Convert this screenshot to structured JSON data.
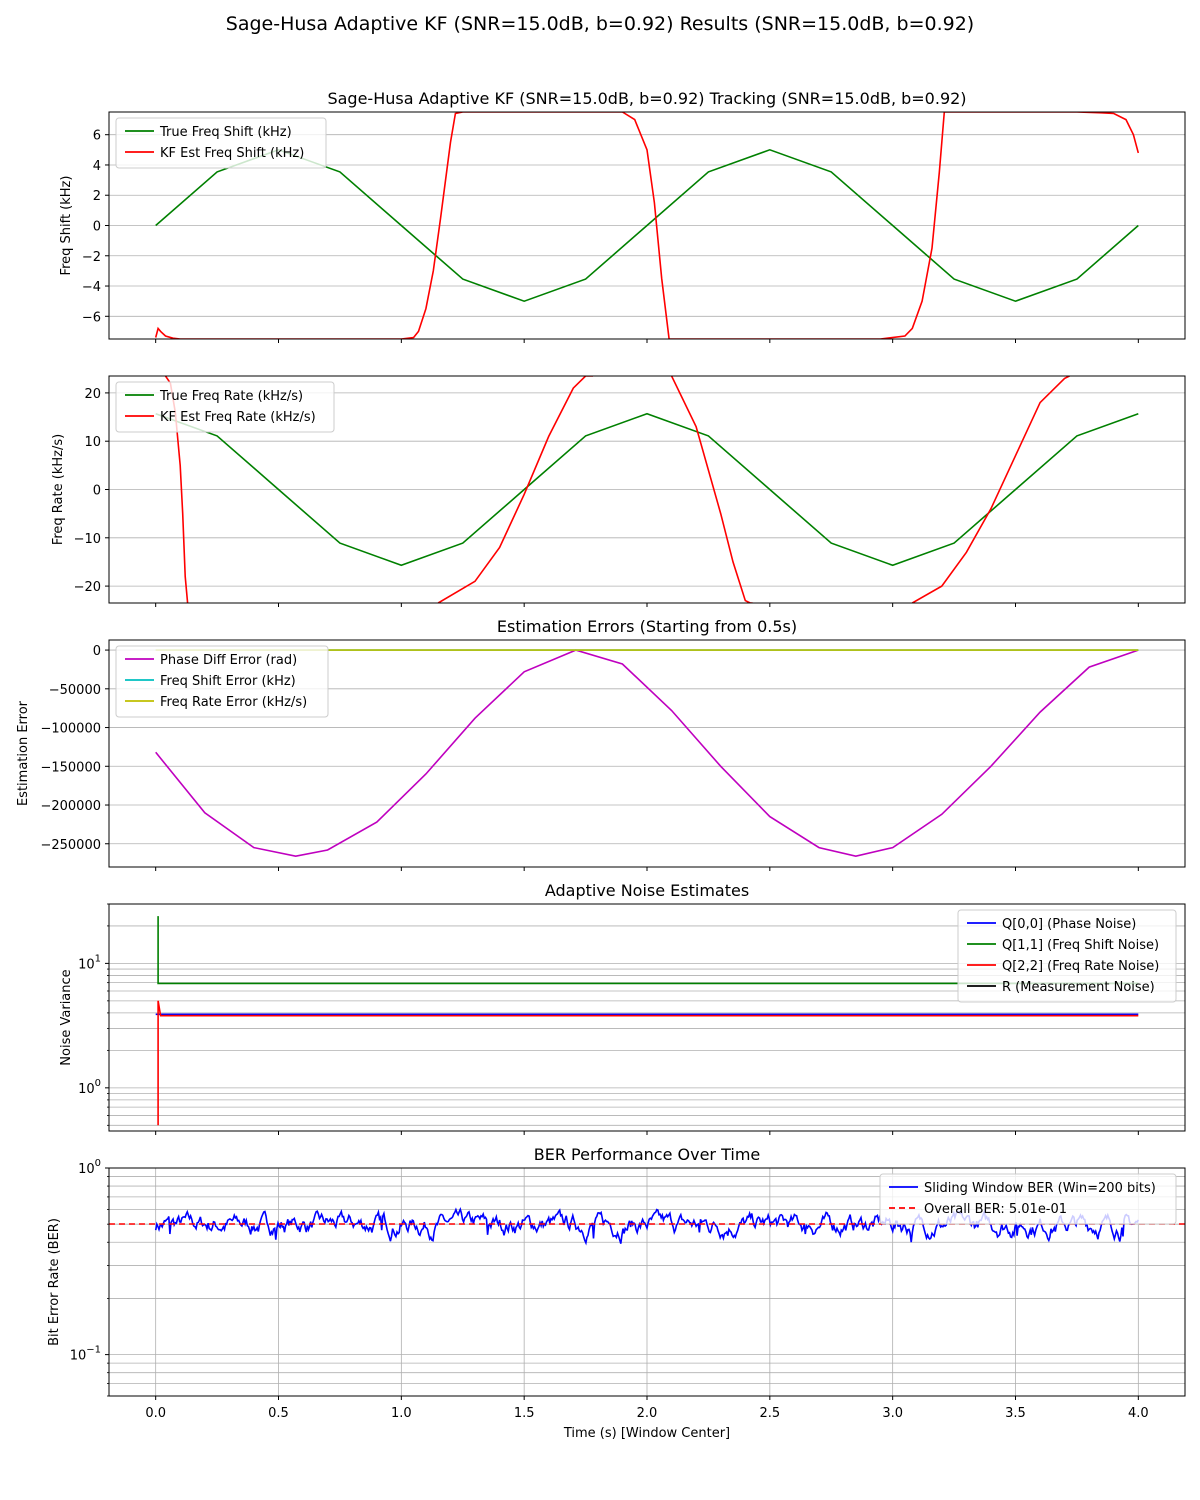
{
  "figure": {
    "title": "Sage-Husa Adaptive KF (SNR=15.0dB, b=0.92) Results (SNR=15.0dB, b=0.92)",
    "shared_xlabel": "Time (s) [Window Center]",
    "x_ticks": [
      "0.0",
      "0.5",
      "1.0",
      "1.5",
      "2.0",
      "2.5",
      "3.0",
      "3.5",
      "4.0"
    ],
    "xlim": [
      -0.19,
      4.19
    ]
  },
  "chart_data": [
    {
      "type": "line",
      "title": "Sage-Husa Adaptive KF (SNR=15.0dB, b=0.92) Tracking (SNR=15.0dB, b=0.92)",
      "xlabel": "",
      "ylabel": "Freq Shift (kHz)",
      "ylim": [
        -7.5,
        7.5
      ],
      "y_ticks": [
        6,
        4,
        2,
        0,
        -2,
        -4,
        -6
      ],
      "y_tick_labels": [
        "6",
        "4",
        "2",
        "0",
        "−2",
        "−4",
        "−6"
      ],
      "grid": "horizontal",
      "legend": "upper-left",
      "series": [
        {
          "name": "True Freq Shift (kHz)",
          "color": "#008000",
          "x": [
            0.0,
            0.25,
            0.5,
            0.75,
            1.0,
            1.25,
            1.5,
            1.75,
            2.0,
            2.25,
            2.5,
            2.75,
            3.0,
            3.25,
            3.5,
            3.75,
            4.0
          ],
          "y": [
            0.0,
            3.54,
            5.0,
            3.54,
            0.0,
            -3.54,
            -5.0,
            -3.54,
            0.0,
            3.54,
            5.0,
            3.54,
            0.0,
            -3.54,
            -5.0,
            -3.54,
            0.0
          ]
        },
        {
          "name": "KF Est Freq Shift (kHz)",
          "color": "#ff0000",
          "x": [
            0.0,
            0.01,
            0.02,
            0.04,
            0.07,
            0.1,
            0.5,
            1.0,
            1.05,
            1.07,
            1.1,
            1.13,
            1.16,
            1.2,
            1.22,
            1.25,
            1.5,
            1.85,
            1.9,
            1.95,
            2.0,
            2.03,
            2.06,
            2.09,
            2.5,
            2.95,
            3.05,
            3.08,
            3.12,
            3.16,
            3.19,
            3.2,
            3.21,
            3.5,
            3.75,
            3.85,
            3.9,
            3.95,
            3.98,
            4.0
          ],
          "y": [
            -7.4,
            -6.8,
            -7.0,
            -7.3,
            -7.45,
            -7.5,
            -7.5,
            -7.5,
            -7.4,
            -7.0,
            -5.5,
            -3.0,
            0.5,
            5.5,
            7.4,
            7.5,
            7.5,
            7.5,
            7.5,
            7.0,
            5.0,
            1.5,
            -3.5,
            -7.5,
            -7.5,
            -7.5,
            -7.3,
            -6.8,
            -5.0,
            -1.5,
            3.5,
            5.5,
            7.5,
            7.5,
            7.5,
            7.45,
            7.4,
            7.0,
            6.0,
            4.8
          ]
        }
      ]
    },
    {
      "type": "line",
      "title": "",
      "xlabel": "",
      "ylabel": "Freq Rate (kHz/s)",
      "ylim": [
        -23.5,
        23.5
      ],
      "y_ticks": [
        20,
        10,
        0,
        -10,
        -20
      ],
      "y_tick_labels": [
        "20",
        "10",
        "0",
        "−10",
        "−20"
      ],
      "grid": "horizontal",
      "legend": "upper-left",
      "series": [
        {
          "name": "True Freq Rate (kHz/s)",
          "color": "#008000",
          "x": [
            0.0,
            0.25,
            0.5,
            0.75,
            1.0,
            1.25,
            1.5,
            1.75,
            2.0,
            2.25,
            2.5,
            2.75,
            3.0,
            3.25,
            3.5,
            3.75,
            4.0
          ],
          "y": [
            15.7,
            11.1,
            0.0,
            -11.1,
            -15.7,
            -11.1,
            0.0,
            11.1,
            15.7,
            11.1,
            0.0,
            -11.1,
            -15.7,
            -11.1,
            0.0,
            11.1,
            15.7
          ]
        },
        {
          "name": "KF Est Freq Rate (kHz/s)",
          "color": "#ff0000",
          "x": [
            0.04,
            0.06,
            0.08,
            0.1,
            0.11,
            0.12,
            0.13,
            null,
            1.15,
            1.3,
            1.4,
            1.5,
            1.6,
            1.7,
            1.75,
            1.78,
            null,
            2.1,
            2.2,
            2.3,
            2.35,
            2.4,
            2.42,
            2.43,
            null,
            3.08,
            3.2,
            3.3,
            3.4,
            3.5,
            3.6,
            3.7,
            3.72
          ]
        },
        {
          "name": "_rate_y",
          "y": [
            23.5,
            22.0,
            16.0,
            5.0,
            -5.0,
            -18.0,
            -23.5,
            null,
            -23.5,
            -19.0,
            -12.0,
            -1.0,
            11.0,
            21.0,
            23.5,
            23.5,
            null,
            23.5,
            13.0,
            -5.0,
            -15.0,
            -23.0,
            -23.5,
            -23.5,
            null,
            -23.5,
            -20.0,
            -13.0,
            -4.0,
            7.0,
            18.0,
            23.0,
            23.5
          ]
        }
      ]
    },
    {
      "type": "line",
      "title": "Estimation Errors (Starting from 0.5s)",
      "xlabel": "",
      "ylabel": "Estimation Error",
      "ylim": [
        -280000,
        13000
      ],
      "y_ticks": [
        0,
        -50000,
        -100000,
        -150000,
        -200000,
        -250000
      ],
      "y_tick_labels": [
        "0",
        "−50000",
        "−100000",
        "−150000",
        "−200000",
        "−250000"
      ],
      "grid": "horizontal",
      "legend": "upper-left",
      "series": [
        {
          "name": "Phase Diff Error (rad)",
          "color": "#bf00bf",
          "x": [
            0.0,
            0.2,
            0.4,
            0.57,
            0.7,
            0.9,
            1.1,
            1.3,
            1.5,
            1.71,
            1.9,
            2.1,
            2.3,
            2.5,
            2.7,
            2.85,
            3.0,
            3.2,
            3.4,
            3.6,
            3.8,
            4.0
          ],
          "y": [
            -132000,
            -210000,
            -255000,
            -266000,
            -258000,
            -222000,
            -160000,
            -88000,
            -28000,
            0,
            -18000,
            -78000,
            -150000,
            -215000,
            -255000,
            -266000,
            -255000,
            -212000,
            -150000,
            -80000,
            -22000,
            0
          ]
        },
        {
          "name": "Freq Shift Error (kHz)",
          "color": "#00bfbf",
          "x": [
            0.0,
            4.0
          ],
          "y": [
            0,
            0
          ]
        },
        {
          "name": "Freq Rate Error (kHz/s)",
          "color": "#bfbf00",
          "x": [
            0.0,
            4.0
          ],
          "y": [
            0,
            0
          ]
        }
      ]
    },
    {
      "type": "line",
      "scale": "log",
      "title": "Adaptive Noise Estimates",
      "xlabel": "",
      "ylabel": "Noise Variance",
      "ylim": [
        0.45,
        30
      ],
      "y_ticks": [
        1,
        10
      ],
      "y_tick_base": "10",
      "y_tick_exponents": [
        "0",
        "1"
      ],
      "grid": "horizontal-minor",
      "legend": "upper-right",
      "series": [
        {
          "name": "Q[0,0] (Phase Noise)",
          "color": "#0000ff",
          "x": [
            0.0,
            0.01,
            4.0
          ],
          "y": [
            3.9,
            3.9,
            3.9
          ]
        },
        {
          "name": "Q[1,1] (Freq Shift Noise)",
          "color": "#008000",
          "x": [
            0.01,
            0.01,
            0.02,
            4.0
          ],
          "y": [
            24.0,
            6.9,
            6.9,
            6.9
          ]
        },
        {
          "name": "Q[2,2] (Freq Rate Noise)",
          "color": "#ff0000",
          "x": [
            0.01,
            0.01,
            0.02,
            4.0
          ],
          "y": [
            0.5,
            5.0,
            3.8,
            3.8
          ]
        },
        {
          "name": "R (Measurement Noise)",
          "color": "#000000",
          "x": [
            0.0,
            0.0
          ],
          "y": [
            3.8,
            3.8
          ]
        }
      ]
    },
    {
      "type": "line",
      "scale": "log",
      "title": "BER Performance Over Time",
      "xlabel": "Time (s) [Window Center]",
      "ylabel": "Bit Error Rate (BER)",
      "ylim": [
        0.06,
        1.0
      ],
      "y_ticks": [
        0.1,
        1.0
      ],
      "y_tick_base": "10",
      "y_tick_exponents": [
        "−1",
        "0"
      ],
      "grid": "both",
      "legend": "upper-right",
      "series": [
        {
          "name": "Sliding Window BER (Win=200 bits)",
          "color": "#0000ff",
          "mean": 0.5,
          "x_range": [
            0.0,
            4.0
          ]
        },
        {
          "name": "Overall BER: 5.01e-01",
          "color": "#ff0000",
          "style": "dashed",
          "y": 0.501
        }
      ]
    }
  ]
}
